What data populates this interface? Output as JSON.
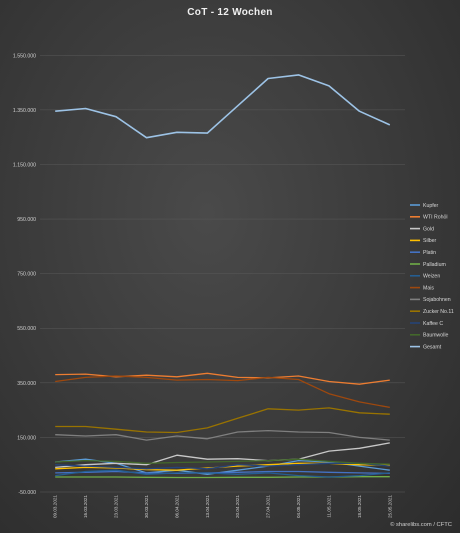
{
  "chart_data": {
    "type": "line",
    "title": "CoT - 12 Wochen",
    "xlabel": "",
    "ylabel": "",
    "ylim": [
      -50000,
      1650000
    ],
    "yticks": [
      -50000,
      150000,
      350000,
      550000,
      750000,
      950000,
      1150000,
      1350000,
      1550000
    ],
    "ytick_labels": [
      "-50.000",
      "150.000",
      "350.000",
      "550.000",
      "750.000",
      "950.000",
      "1.150.000",
      "1.350.000",
      "1.550.000"
    ],
    "grid": true,
    "legend_position": "right",
    "x": [
      "09.03.2021",
      "16.03.2021",
      "23.03.2021",
      "30.03.2021",
      "06.04.2021",
      "13.04.2021",
      "20.04.2021",
      "27.04.2021",
      "04.05.2021",
      "11.05.2021",
      "18.05.2021",
      "25.05.2021"
    ],
    "series": [
      {
        "name": "Kupfer",
        "color": "#5b9bd5",
        "values": [
          60000,
          70000,
          55000,
          20000,
          30000,
          15000,
          30000,
          45000,
          65000,
          60000,
          45000,
          30000
        ]
      },
      {
        "name": "WTI Rohöl",
        "color": "#ed7d31",
        "values": [
          380000,
          382000,
          372000,
          378000,
          372000,
          385000,
          370000,
          368000,
          375000,
          355000,
          345000,
          360000
        ]
      },
      {
        "name": "Gold",
        "color": "#c8c8c8",
        "values": [
          40000,
          50000,
          55000,
          50000,
          85000,
          70000,
          72000,
          65000,
          70000,
          100000,
          110000,
          130000
        ]
      },
      {
        "name": "Silber",
        "color": "#ffc000",
        "values": [
          35000,
          40000,
          38000,
          32000,
          30000,
          38000,
          45000,
          50000,
          55000,
          55000,
          50000,
          48000
        ]
      },
      {
        "name": "Platin",
        "color": "#4472c4",
        "values": [
          20000,
          22000,
          25000,
          20000,
          18000,
          20000,
          22000,
          25000,
          25000,
          22000,
          20000,
          18000
        ]
      },
      {
        "name": "Palladium",
        "color": "#70ad47",
        "values": [
          5000,
          5000,
          5000,
          4000,
          3000,
          3000,
          4000,
          4000,
          5000,
          5000,
          6000,
          6000
        ]
      },
      {
        "name": "Weizen",
        "color": "#255e91",
        "values": [
          10000,
          25000,
          30000,
          15000,
          20000,
          20000,
          15000,
          20000,
          10000,
          5000,
          10000,
          20000
        ]
      },
      {
        "name": "Mais",
        "color": "#9e480e",
        "values": [
          355000,
          370000,
          375000,
          370000,
          360000,
          362000,
          358000,
          370000,
          362000,
          310000,
          280000,
          260000
        ]
      },
      {
        "name": "Sojabohnen",
        "color": "#7f7f7f",
        "values": [
          160000,
          155000,
          160000,
          140000,
          155000,
          145000,
          170000,
          175000,
          170000,
          168000,
          150000,
          140000
        ]
      },
      {
        "name": "Zucker No.11",
        "color": "#997300",
        "values": [
          190000,
          190000,
          180000,
          170000,
          168000,
          185000,
          220000,
          255000,
          250000,
          258000,
          240000,
          235000
        ]
      },
      {
        "name": "Kaffee C",
        "color": "#264478",
        "values": [
          50000,
          45000,
          40000,
          35000,
          40000,
          35000,
          50000,
          45000,
          50000,
          55000,
          55000,
          45000
        ]
      },
      {
        "name": "Baumwolle",
        "color": "#43682b",
        "values": [
          60000,
          65000,
          62000,
          55000,
          58000,
          60000,
          62000,
          65000,
          70000,
          62000,
          55000,
          52000
        ]
      },
      {
        "name": "Gesamt",
        "color": "#9dc3e6",
        "values": [
          1345000,
          1355000,
          1325000,
          1248000,
          1268000,
          1265000,
          1365000,
          1465000,
          1478000,
          1438000,
          1345000,
          1295000
        ]
      }
    ]
  },
  "footer": {
    "copyright": "© sharelibs.com / CFTC"
  }
}
